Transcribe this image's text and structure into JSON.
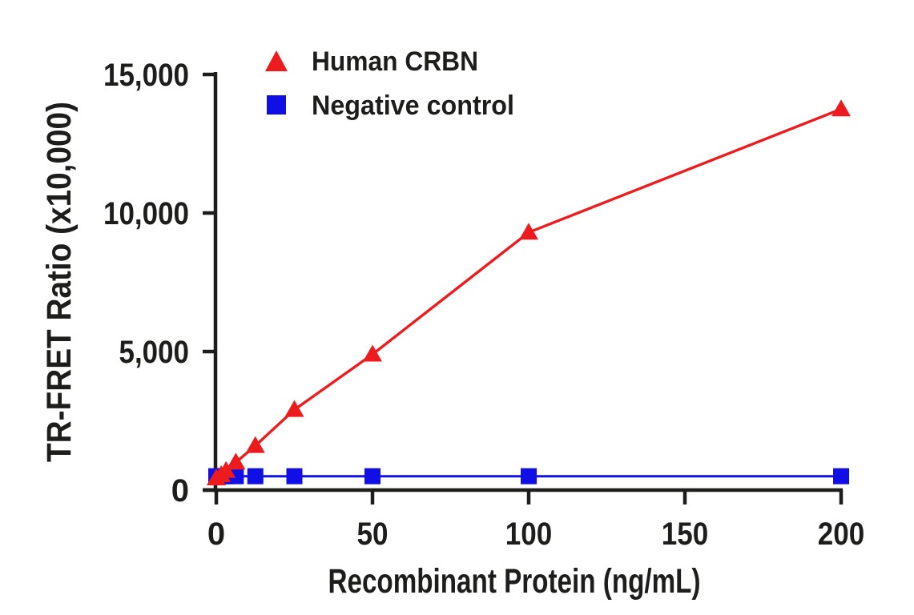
{
  "chart_data": {
    "type": "line",
    "title": "",
    "xlabel": "Recombinant Protein (ng/mL)",
    "ylabel": "TR-FRET Ratio (x10,000)",
    "xlim": [
      0,
      200
    ],
    "ylim": [
      0,
      15000
    ],
    "x_ticks": [
      0,
      50,
      100,
      150,
      200
    ],
    "x_tick_labels": [
      "0",
      "50",
      "100",
      "150",
      "200"
    ],
    "y_ticks": [
      0,
      5000,
      10000,
      15000
    ],
    "y_tick_labels": [
      "0",
      "5,000",
      "10,000",
      "15,000"
    ],
    "x": [
      0,
      1.56,
      3.13,
      6.25,
      12.5,
      25,
      50,
      100,
      200
    ],
    "series": [
      {
        "name": "Human CRBN",
        "marker": "triangle",
        "color": "#ee1b1e",
        "values": [
          430,
          550,
          700,
          1000,
          1600,
          2900,
          4900,
          9300,
          13750
        ]
      },
      {
        "name": "Negative control",
        "marker": "square",
        "color": "#1010e6",
        "values": [
          500,
          500,
          500,
          500,
          500,
          500,
          500,
          500,
          500
        ]
      }
    ],
    "grid": false,
    "legend_position": "top-left-inside",
    "axis_color": "#1d1d1b",
    "background": "#ffffff"
  }
}
